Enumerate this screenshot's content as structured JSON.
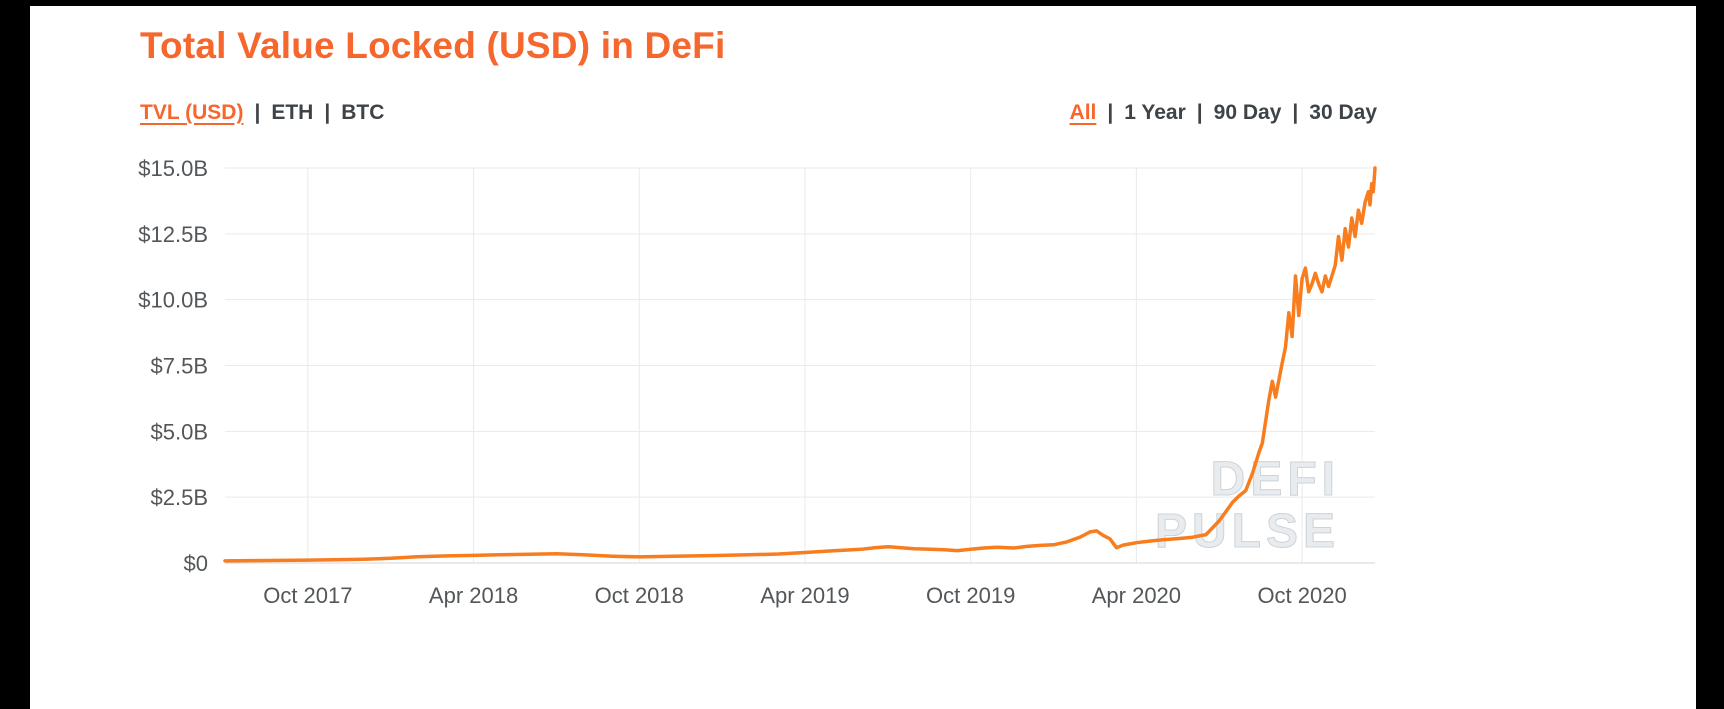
{
  "page": {
    "title": "Total Value Locked (USD) in DeFi"
  },
  "controls": {
    "separator": "|",
    "series": [
      {
        "label": "TVL (USD)",
        "active": true
      },
      {
        "label": "ETH",
        "active": false
      },
      {
        "label": "BTC",
        "active": false
      }
    ],
    "range": [
      {
        "label": "All",
        "active": true
      },
      {
        "label": "1 Year",
        "active": false
      },
      {
        "label": "90 Day",
        "active": false
      },
      {
        "label": "30 Day",
        "active": false
      }
    ]
  },
  "watermark": {
    "line1": "DEFI",
    "line2": "PULSE"
  },
  "colors": {
    "accent": "#f5672d",
    "line": "#f87d1f",
    "text": "#3e4347",
    "tick_label": "#53575a",
    "grid": "#e8eaec",
    "grid_zero": "#d2d6d9",
    "watermark_fill": "#e9ecef",
    "watermark_stroke": "#ccd3d9",
    "page_bg": "#000000",
    "frame_bg": "#ffffff"
  },
  "chart_data": {
    "type": "line",
    "title": "Total Value Locked (USD) in DeFi",
    "xlabel": "",
    "ylabel": "TVL (USD)",
    "ylim": [
      0,
      15
    ],
    "x_range": [
      2017.5,
      2020.97
    ],
    "grid": true,
    "legend_position": "none",
    "y_ticks": [
      "$15.0B",
      "$12.5B",
      "$10.0B",
      "$7.5B",
      "$5.0B",
      "$2.5B",
      "$0"
    ],
    "y_tick_values": [
      15,
      12.5,
      10,
      7.5,
      5,
      2.5,
      0
    ],
    "x_ticks": [
      "Oct 2017",
      "Apr 2018",
      "Oct 2018",
      "Apr 2019",
      "Oct 2019",
      "Apr 2020",
      "Oct 2020"
    ],
    "x_tick_values": [
      2017.75,
      2018.25,
      2018.75,
      2019.25,
      2019.75,
      2020.25,
      2020.75
    ],
    "series": [
      {
        "name": "TVL (USD)",
        "color": "#f87d1f",
        "units": "billions USD",
        "points": [
          [
            2017.5,
            0.08
          ],
          [
            2017.58,
            0.09
          ],
          [
            2017.67,
            0.1
          ],
          [
            2017.75,
            0.11
          ],
          [
            2017.83,
            0.12
          ],
          [
            2017.92,
            0.14
          ],
          [
            2018.0,
            0.18
          ],
          [
            2018.08,
            0.24
          ],
          [
            2018.17,
            0.27
          ],
          [
            2018.25,
            0.29
          ],
          [
            2018.33,
            0.31
          ],
          [
            2018.42,
            0.33
          ],
          [
            2018.5,
            0.35
          ],
          [
            2018.58,
            0.31
          ],
          [
            2018.67,
            0.26
          ],
          [
            2018.75,
            0.23
          ],
          [
            2018.83,
            0.25
          ],
          [
            2018.92,
            0.27
          ],
          [
            2019.0,
            0.29
          ],
          [
            2019.08,
            0.31
          ],
          [
            2019.17,
            0.34
          ],
          [
            2019.25,
            0.4
          ],
          [
            2019.33,
            0.46
          ],
          [
            2019.42,
            0.52
          ],
          [
            2019.46,
            0.58
          ],
          [
            2019.5,
            0.62
          ],
          [
            2019.54,
            0.58
          ],
          [
            2019.58,
            0.54
          ],
          [
            2019.63,
            0.52
          ],
          [
            2019.67,
            0.5
          ],
          [
            2019.71,
            0.47
          ],
          [
            2019.75,
            0.52
          ],
          [
            2019.79,
            0.57
          ],
          [
            2019.83,
            0.6
          ],
          [
            2019.88,
            0.57
          ],
          [
            2019.92,
            0.63
          ],
          [
            2019.96,
            0.67
          ],
          [
            2020.0,
            0.69
          ],
          [
            2020.04,
            0.8
          ],
          [
            2020.08,
            0.98
          ],
          [
            2020.11,
            1.18
          ],
          [
            2020.13,
            1.22
          ],
          [
            2020.15,
            1.05
          ],
          [
            2020.17,
            0.92
          ],
          [
            2020.19,
            0.58
          ],
          [
            2020.21,
            0.68
          ],
          [
            2020.25,
            0.77
          ],
          [
            2020.29,
            0.83
          ],
          [
            2020.33,
            0.88
          ],
          [
            2020.38,
            0.93
          ],
          [
            2020.42,
            0.98
          ],
          [
            2020.46,
            1.08
          ],
          [
            2020.5,
            1.6
          ],
          [
            2020.52,
            1.95
          ],
          [
            2020.54,
            2.3
          ],
          [
            2020.56,
            2.55
          ],
          [
            2020.58,
            2.75
          ],
          [
            2020.6,
            3.4
          ],
          [
            2020.62,
            4.2
          ],
          [
            2020.63,
            4.55
          ],
          [
            2020.65,
            6.2
          ],
          [
            2020.66,
            6.9
          ],
          [
            2020.67,
            6.3
          ],
          [
            2020.69,
            7.6
          ],
          [
            2020.7,
            8.2
          ],
          [
            2020.71,
            9.5
          ],
          [
            2020.72,
            8.6
          ],
          [
            2020.73,
            10.9
          ],
          [
            2020.74,
            9.4
          ],
          [
            2020.75,
            10.8
          ],
          [
            2020.76,
            11.2
          ],
          [
            2020.77,
            10.3
          ],
          [
            2020.78,
            10.6
          ],
          [
            2020.79,
            11.0
          ],
          [
            2020.8,
            10.6
          ],
          [
            2020.81,
            10.3
          ],
          [
            2020.82,
            10.9
          ],
          [
            2020.83,
            10.5
          ],
          [
            2020.85,
            11.3
          ],
          [
            2020.86,
            12.4
          ],
          [
            2020.87,
            11.5
          ],
          [
            2020.88,
            12.7
          ],
          [
            2020.89,
            12.0
          ],
          [
            2020.9,
            13.1
          ],
          [
            2020.91,
            12.4
          ],
          [
            2020.92,
            13.4
          ],
          [
            2020.93,
            12.9
          ],
          [
            2020.94,
            13.7
          ],
          [
            2020.95,
            14.1
          ],
          [
            2020.955,
            13.6
          ],
          [
            2020.96,
            14.4
          ],
          [
            2020.965,
            14.1
          ],
          [
            2020.97,
            15.0
          ]
        ]
      }
    ]
  }
}
